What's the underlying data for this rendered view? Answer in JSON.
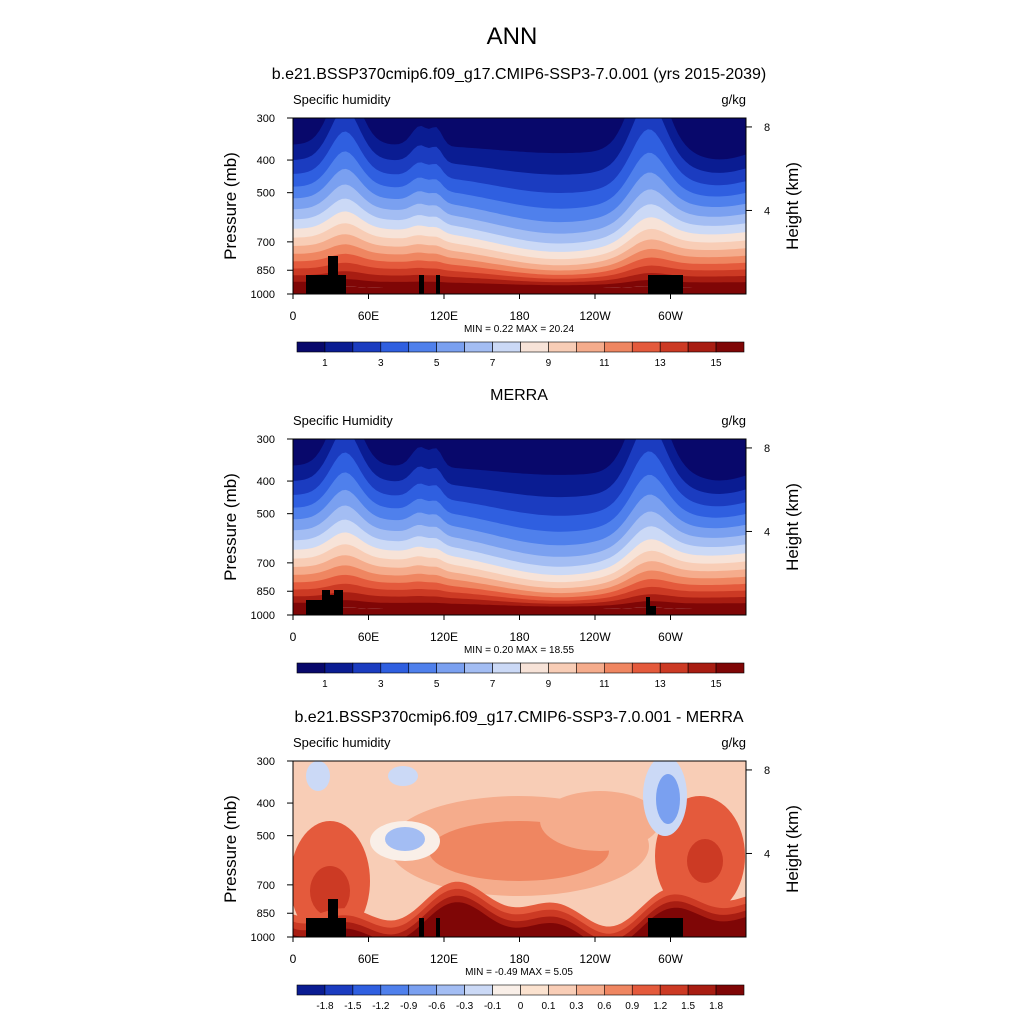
{
  "page": {
    "title": "ANN"
  },
  "chart_data": [
    {
      "type": "heatmap",
      "title": "b.e21.BSSP370cmip6.f09_g17.CMIP6-SSP3-7.0.001 (yrs 2015-2039)",
      "field_label": "Specific humidity",
      "units": "g/kg",
      "ylabel": "Pressure (mb)",
      "y2label": "Height (km)",
      "y_ticks": [
        "300",
        "400",
        "500",
        "700",
        "850",
        "1000"
      ],
      "y2_ticks": [
        "8",
        "4"
      ],
      "x_ticks": [
        "0",
        "60E",
        "120E",
        "180",
        "120W",
        "60W"
      ],
      "stats": "MIN =   0.22  MAX =  20.24",
      "min": 0.22,
      "max": 20.24,
      "levels": [
        1,
        3,
        5,
        7,
        9,
        11,
        13,
        15
      ],
      "colorbar_labels": [
        "1",
        "3",
        "5",
        "7",
        "9",
        "11",
        "13",
        "15"
      ]
    },
    {
      "type": "heatmap",
      "title": "MERRA",
      "field_label": "Specific Humidity",
      "units": "g/kg",
      "ylabel": "Pressure (mb)",
      "y2label": "Height (km)",
      "y_ticks": [
        "300",
        "400",
        "500",
        "700",
        "850",
        "1000"
      ],
      "y2_ticks": [
        "8",
        "4"
      ],
      "x_ticks": [
        "0",
        "60E",
        "120E",
        "180",
        "120W",
        "60W"
      ],
      "stats": "MIN =   0.20  MAX =  18.55",
      "min": 0.2,
      "max": 18.55,
      "levels": [
        1,
        3,
        5,
        7,
        9,
        11,
        13,
        15
      ],
      "colorbar_labels": [
        "1",
        "3",
        "5",
        "7",
        "9",
        "11",
        "13",
        "15"
      ]
    },
    {
      "type": "heatmap",
      "title": "b.e21.BSSP370cmip6.f09_g17.CMIP6-SSP3-7.0.001 - MERRA",
      "field_label": "Specific humidity",
      "units": "g/kg",
      "ylabel": "Pressure (mb)",
      "y2label": "Height (km)",
      "y_ticks": [
        "300",
        "400",
        "500",
        "700",
        "850",
        "1000"
      ],
      "y2_ticks": [
        "8",
        "4"
      ],
      "x_ticks": [
        "0",
        "60E",
        "120E",
        "180",
        "120W",
        "60W"
      ],
      "stats": "MIN =  -0.49  MAX =   5.05",
      "min": -0.49,
      "max": 5.05,
      "levels": [
        -1.8,
        -1.5,
        -1.2,
        -0.9,
        -0.6,
        -0.3,
        -0.1,
        0,
        0.1,
        0.3,
        0.6,
        0.9,
        1.2,
        1.5,
        1.8
      ],
      "colorbar_labels": [
        "-1.8",
        "-1.5",
        "-1.2",
        "-0.9",
        "-0.6",
        "-0.3",
        "-0.1",
        "0",
        "0.1",
        "0.3",
        "0.6",
        "0.9",
        "1.2",
        "1.5",
        "1.8"
      ]
    }
  ],
  "colors": {
    "seq_palette": [
      "#08086b",
      "#0a1c92",
      "#1b3cc0",
      "#2f5fe0",
      "#4f80ec",
      "#7aa0f0",
      "#a3bdf3",
      "#cbd9f6",
      "#f7e3d8",
      "#f8cdb6",
      "#f5ac8c",
      "#ef8661",
      "#e45a3c",
      "#cc3a24",
      "#a81d12",
      "#7f0606"
    ],
    "div_palette": [
      "#0a1c92",
      "#1b3cc0",
      "#2f5fe0",
      "#4f80ec",
      "#7aa0f0",
      "#a3bdf3",
      "#cbd9f6",
      "#f9efe8",
      "#fbe2cf",
      "#f8cdb6",
      "#f5ac8c",
      "#ef8661",
      "#e45a3c",
      "#cc3a24",
      "#a81d12",
      "#7f0606"
    ]
  }
}
